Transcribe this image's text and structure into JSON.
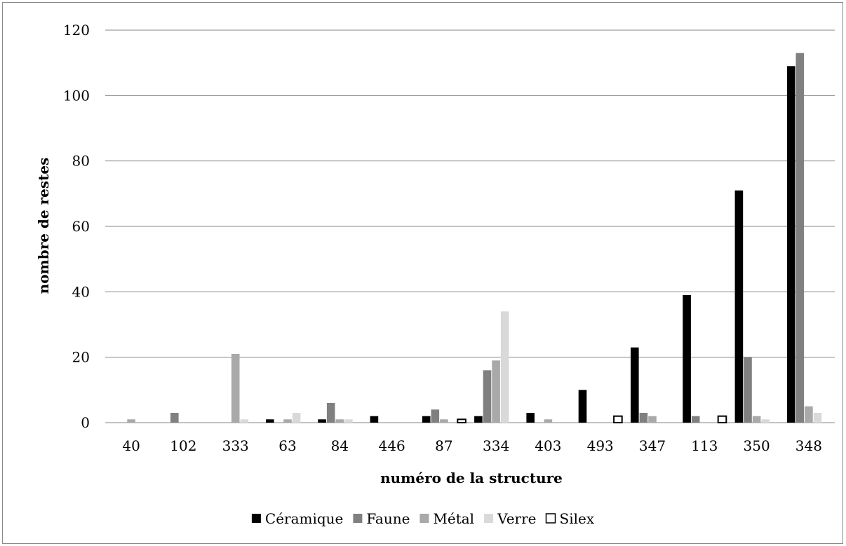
{
  "chart_data": {
    "type": "bar",
    "title": "",
    "xlabel": "numéro de la structure",
    "ylabel": "nombre de restes",
    "ylim": [
      0,
      120
    ],
    "yticks": [
      0,
      20,
      40,
      60,
      80,
      100,
      120
    ],
    "grid": true,
    "legend_position": "bottom",
    "categories": [
      "40",
      "102",
      "333",
      "63",
      "84",
      "446",
      "87",
      "334",
      "403",
      "493",
      "347",
      "113",
      "350",
      "348"
    ],
    "series": [
      {
        "name": "Céramique",
        "color": "#000000",
        "stroke": "#000000",
        "values": [
          0,
          0,
          0,
          1,
          1,
          2,
          2,
          2,
          3,
          10,
          23,
          39,
          71,
          109
        ]
      },
      {
        "name": "Faune",
        "color": "#808080",
        "stroke": "#808080",
        "values": [
          0,
          3,
          0,
          0,
          6,
          0,
          4,
          16,
          0,
          0,
          3,
          2,
          20,
          113
        ]
      },
      {
        "name": "Métal",
        "color": "#a9a9a9",
        "stroke": "#a9a9a9",
        "values": [
          1,
          0,
          21,
          1,
          1,
          0,
          1,
          19,
          1,
          0,
          2,
          0,
          2,
          5
        ]
      },
      {
        "name": "Verre",
        "color": "#d9d9d9",
        "stroke": "#d9d9d9",
        "values": [
          0,
          0,
          1,
          3,
          1,
          0,
          0,
          34,
          0,
          0,
          0,
          0,
          1,
          3
        ]
      },
      {
        "name": "Silex",
        "color": "#ffffff",
        "stroke": "#000000",
        "values": [
          0,
          0,
          0,
          0,
          0,
          0,
          1,
          0,
          0,
          2,
          0,
          2,
          0,
          0
        ]
      }
    ]
  }
}
